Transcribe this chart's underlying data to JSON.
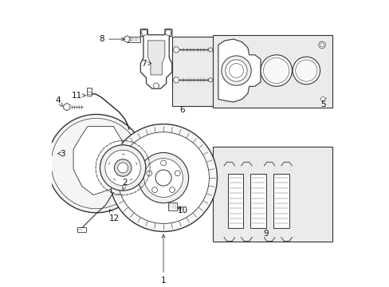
{
  "background_color": "#ffffff",
  "line_color": "#333333",
  "fig_width": 4.89,
  "fig_height": 3.6,
  "dpi": 100,
  "font_size": 7.5,
  "text_color": "#111111",
  "labels": {
    "1": [
      3.92,
      0.3,
      3.9,
      0.1
    ],
    "2": [
      2.38,
      3.85,
      2.55,
      3.65
    ],
    "3": [
      0.6,
      4.5,
      0.38,
      4.68
    ],
    "4": [
      0.28,
      6.3,
      0.12,
      6.5
    ],
    "5": [
      9.55,
      3.5,
      9.55,
      3.5
    ],
    "6": [
      4.55,
      5.55,
      4.55,
      5.55
    ],
    "7": [
      3.5,
      7.8,
      3.25,
      7.8
    ],
    "8": [
      1.95,
      8.6,
      1.72,
      8.6
    ],
    "9": [
      7.5,
      2.1,
      7.5,
      1.88
    ],
    "10": [
      4.58,
      2.9,
      4.58,
      2.68
    ],
    "11": [
      1.2,
      6.68,
      0.88,
      6.68
    ],
    "12": [
      2.18,
      2.62,
      2.18,
      2.38
    ]
  }
}
